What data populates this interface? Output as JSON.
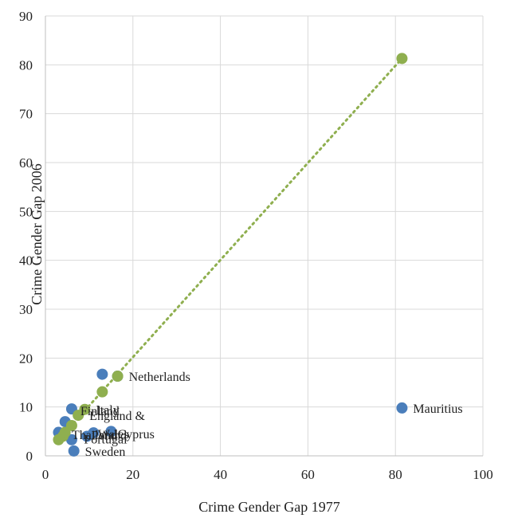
{
  "chart_data": {
    "type": "scatter",
    "xlabel": "Crime Gender Gap 1977",
    "ylabel": "Crime Gender Gap 2006",
    "xlim": [
      0,
      100
    ],
    "ylim": [
      0,
      90
    ],
    "xticks": [
      0,
      20,
      40,
      60,
      80,
      100
    ],
    "yticks": [
      0,
      10,
      20,
      30,
      40,
      50,
      60,
      70,
      80,
      90
    ],
    "grid": true,
    "legend": "none",
    "series": [
      {
        "color": "#4a7ebb",
        "points": [
          {
            "x": 81.5,
            "y": 9.8,
            "label": "Mauritius"
          },
          {
            "x": 13.0,
            "y": 16.7,
            "label": ""
          },
          {
            "x": 16.5,
            "y": 16.3,
            "label": "Netherlands"
          },
          {
            "x": 6.0,
            "y": 9.6,
            "label": ""
          },
          {
            "x": 4.5,
            "y": 7.0,
            "label": ""
          },
          {
            "x": 3.0,
            "y": 4.8,
            "label": ""
          },
          {
            "x": 6.0,
            "y": 3.3,
            "label": ""
          },
          {
            "x": 6.5,
            "y": 1.0,
            "label": "Sweden"
          },
          {
            "x": 9.5,
            "y": 4.0,
            "label": ""
          },
          {
            "x": 11.0,
            "y": 4.7,
            "label": ""
          },
          {
            "x": 15.0,
            "y": 5.0,
            "label": ""
          }
        ]
      },
      {
        "color": "#8faf4f",
        "points": [
          {
            "x": 81.5,
            "y": 81.3,
            "label": ""
          },
          {
            "x": 16.5,
            "y": 16.3,
            "label": ""
          },
          {
            "x": 13.0,
            "y": 13.1,
            "label": ""
          },
          {
            "x": 9.0,
            "y": 9.5,
            "label": "Italy"
          },
          {
            "x": 7.5,
            "y": 8.3,
            "label": "England &"
          },
          {
            "x": 6.0,
            "y": 6.2,
            "label": ""
          },
          {
            "x": 4.5,
            "y": 4.8,
            "label": ""
          },
          {
            "x": 4.0,
            "y": 4.0,
            "label": ""
          },
          {
            "x": 3.0,
            "y": 3.3,
            "label": ""
          }
        ]
      }
    ],
    "trendline": {
      "color": "#8faf4f",
      "style": "dotted",
      "from": {
        "x": 3,
        "y": 3.3
      },
      "to": {
        "x": 81.5,
        "y": 81.3
      }
    },
    "extra_labels": [
      {
        "text": "Finland",
        "x": 8.0,
        "y": 9.3
      },
      {
        "text": "Thailand",
        "x": 6.0,
        "y": 4.4
      },
      {
        "text": "Portugal",
        "x": 8.8,
        "y": 3.5
      },
      {
        "text": "Poland",
        "x": 10.5,
        "y": 4.3
      },
      {
        "text": "Wales",
        "x": 12.0,
        "y": 4.6
      },
      {
        "text": "Cyprus",
        "x": 16.5,
        "y": 4.6
      }
    ]
  }
}
